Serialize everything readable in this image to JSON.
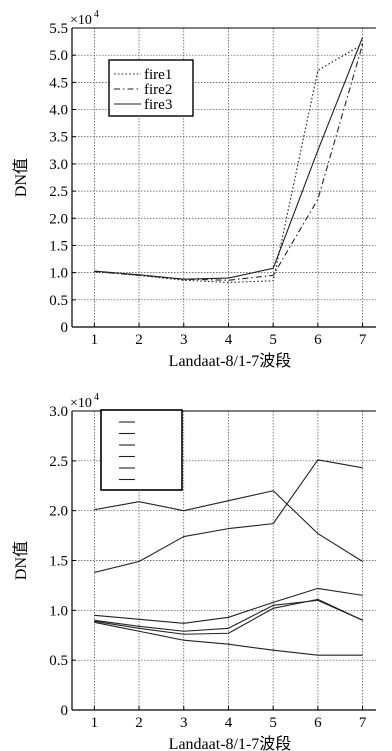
{
  "chart_data": [
    {
      "type": "line",
      "title": "",
      "xlabel": "Landaat-8/1-7波段",
      "ylabel": "DN值",
      "multiplier": "×10",
      "multiplier_exp": "4",
      "x": [
        1,
        2,
        3,
        4,
        5,
        6,
        7
      ],
      "xlim": [
        0.5,
        7.3
      ],
      "ylim": [
        0,
        5.5
      ],
      "xticks": [
        "1",
        "2",
        "3",
        "4",
        "5",
        "6",
        "7"
      ],
      "yticks": [
        "0",
        "0.5",
        "1.0",
        "1.5",
        "2.0",
        "2.5",
        "3.0",
        "3.5",
        "4.0",
        "4.5",
        "5.0",
        "5.5"
      ],
      "grid": true,
      "legend_position": "top-left",
      "series": [
        {
          "name": "fire1",
          "style": "dotted",
          "values": [
            1.02,
            0.95,
            0.86,
            0.82,
            0.85,
            4.72,
            5.2
          ]
        },
        {
          "name": "fire2",
          "style": "dashdot",
          "values": [
            1.02,
            0.95,
            0.88,
            0.86,
            0.95,
            2.35,
            5.2
          ]
        },
        {
          "name": "fire3",
          "style": "solid",
          "values": [
            1.03,
            0.96,
            0.88,
            0.9,
            1.08,
            3.25,
            5.33
          ]
        }
      ]
    },
    {
      "type": "line",
      "title": "",
      "xlabel": "Landaat-8/1-7波段",
      "ylabel": "DN值",
      "multiplier": "×10",
      "multiplier_exp": "4",
      "x": [
        1,
        2,
        3,
        4,
        5,
        6,
        7
      ],
      "xlim": [
        0.5,
        7.3
      ],
      "ylim": [
        0,
        3.0
      ],
      "xticks": [
        "1",
        "2",
        "3",
        "4",
        "5",
        "6",
        "7"
      ],
      "yticks": [
        "0",
        "0.5",
        "1.0",
        "1.5",
        "2.0",
        "2.5",
        "3.0"
      ],
      "grid": true,
      "legend_position": "top-left",
      "legend_entries": 6,
      "series": [
        {
          "style": "solid",
          "values": [
            2.01,
            2.09,
            2.0,
            2.1,
            2.2,
            1.77,
            1.49
          ]
        },
        {
          "style": "solid",
          "values": [
            1.38,
            1.49,
            1.74,
            1.82,
            1.87,
            2.51,
            2.43
          ]
        },
        {
          "style": "solid",
          "values": [
            0.95,
            0.91,
            0.87,
            0.93,
            1.08,
            1.22,
            1.15
          ]
        },
        {
          "style": "solid",
          "values": [
            0.9,
            0.84,
            0.79,
            0.82,
            1.05,
            1.1,
            0.9
          ]
        },
        {
          "style": "solid",
          "values": [
            0.89,
            0.82,
            0.76,
            0.77,
            1.02,
            1.11,
            0.9
          ]
        },
        {
          "style": "solid",
          "values": [
            0.88,
            0.79,
            0.7,
            0.66,
            0.6,
            0.55,
            0.55
          ]
        }
      ]
    }
  ]
}
